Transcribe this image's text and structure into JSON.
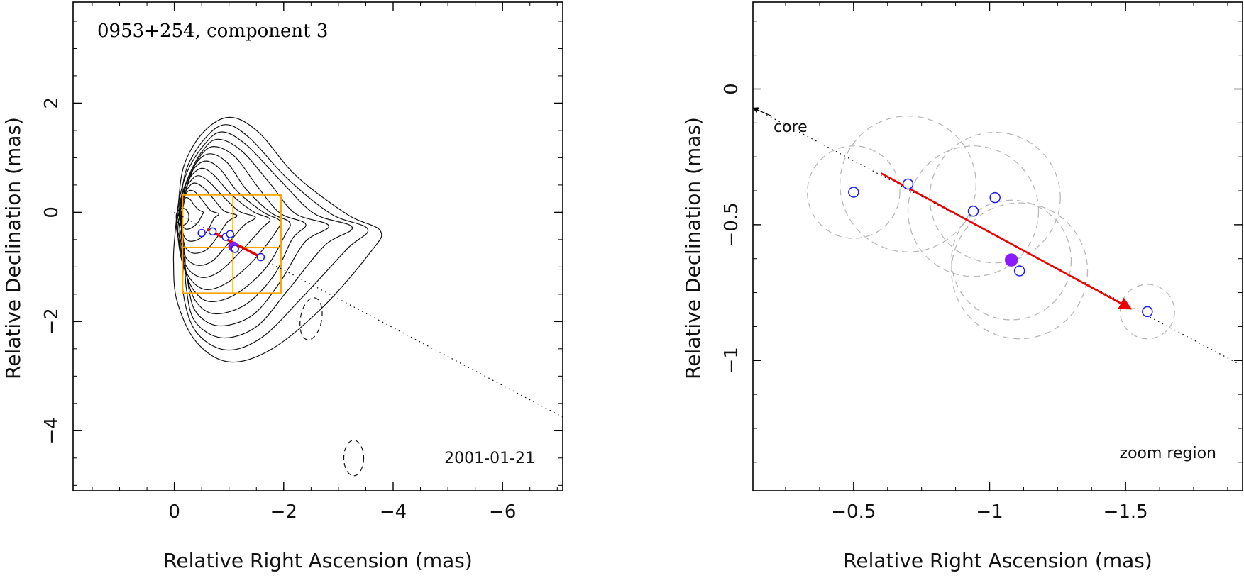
{
  "chart_data": [
    {
      "type": "scatter",
      "panel": "left",
      "title": "0953+254, component 3",
      "date": "2001-01-21",
      "xlabel": "Relative Right Ascension (mas)",
      "ylabel": "Relative Declination (mas)",
      "xlim": [
        1.85,
        -7.1
      ],
      "ylim": [
        -5.1,
        3.85
      ],
      "xticks": [
        0,
        -2,
        -4,
        -6
      ],
      "xtick_labels": [
        "0",
        "−2",
        "−4",
        "−6"
      ],
      "yticks": [
        2,
        0,
        -2,
        -4
      ],
      "ytick_labels": [
        "2",
        "0",
        "−2",
        "−4"
      ],
      "jet_axis": {
        "from": [
          0.0,
          0.0
        ],
        "to": [
          -7.1,
          -3.75
        ]
      },
      "motion_vector": {
        "from": [
          -0.6,
          -0.31
        ],
        "to": [
          -1.6,
          -0.83
        ],
        "color": "#ee0000"
      },
      "zoom_box": {
        "x": [
          -0.15,
          -1.95
        ],
        "y": [
          0.32,
          -1.48
        ],
        "grid_x": -1.07,
        "grid_y": -0.64,
        "color": "#ffa500"
      },
      "points": [
        {
          "x": -0.5,
          "y": -0.38
        },
        {
          "x": -0.7,
          "y": -0.35
        },
        {
          "x": -0.94,
          "y": -0.45
        },
        {
          "x": -1.02,
          "y": -0.4
        },
        {
          "x": -1.08,
          "y": -0.63,
          "filled": true
        },
        {
          "x": -1.11,
          "y": -0.67
        },
        {
          "x": -1.58,
          "y": -0.82
        }
      ],
      "contour_levels": 12,
      "point_color": "#1a1aff",
      "filled_color": "#8b1aff"
    },
    {
      "type": "scatter",
      "panel": "right",
      "label": "zoom region",
      "annotation": "core",
      "xlabel": "Relative Right Ascension (mas)",
      "ylabel": "Relative Declination (mas)",
      "xlim": [
        -0.13,
        -1.93
      ],
      "ylim": [
        -1.48,
        0.32
      ],
      "xticks": [
        -0.5,
        -1,
        -1.5
      ],
      "xtick_labels": [
        "−0.5",
        "−1",
        "−1.5"
      ],
      "yticks": [
        0,
        -0.5,
        -1
      ],
      "ytick_labels": [
        "0",
        "−0.5",
        "−1"
      ],
      "jet_axis": {
        "from": [
          0.0,
          0.0
        ],
        "to": [
          -1.93,
          -1.02
        ]
      },
      "core_arrow": {
        "from": [
          -0.2,
          -0.1
        ],
        "to": [
          -0.13,
          -0.07
        ]
      },
      "motion_vector": {
        "from": [
          -0.6,
          -0.31
        ],
        "to": [
          -1.52,
          -0.81
        ],
        "color": "#ee0000"
      },
      "points": [
        {
          "x": -0.5,
          "y": -0.38,
          "err": 0.17
        },
        {
          "x": -0.7,
          "y": -0.35,
          "err": 0.25
        },
        {
          "x": -0.94,
          "y": -0.45,
          "err": 0.24
        },
        {
          "x": -1.02,
          "y": -0.4,
          "err": 0.24
        },
        {
          "x": -1.08,
          "y": -0.63,
          "filled": true,
          "err": 0.22
        },
        {
          "x": -1.11,
          "y": -0.67,
          "err": 0.25
        },
        {
          "x": -1.58,
          "y": -0.82,
          "err": 0.1
        }
      ],
      "point_color": "#1a1aff",
      "filled_color": "#8b1aff",
      "error_circle_color": "#b8b8b8"
    }
  ]
}
